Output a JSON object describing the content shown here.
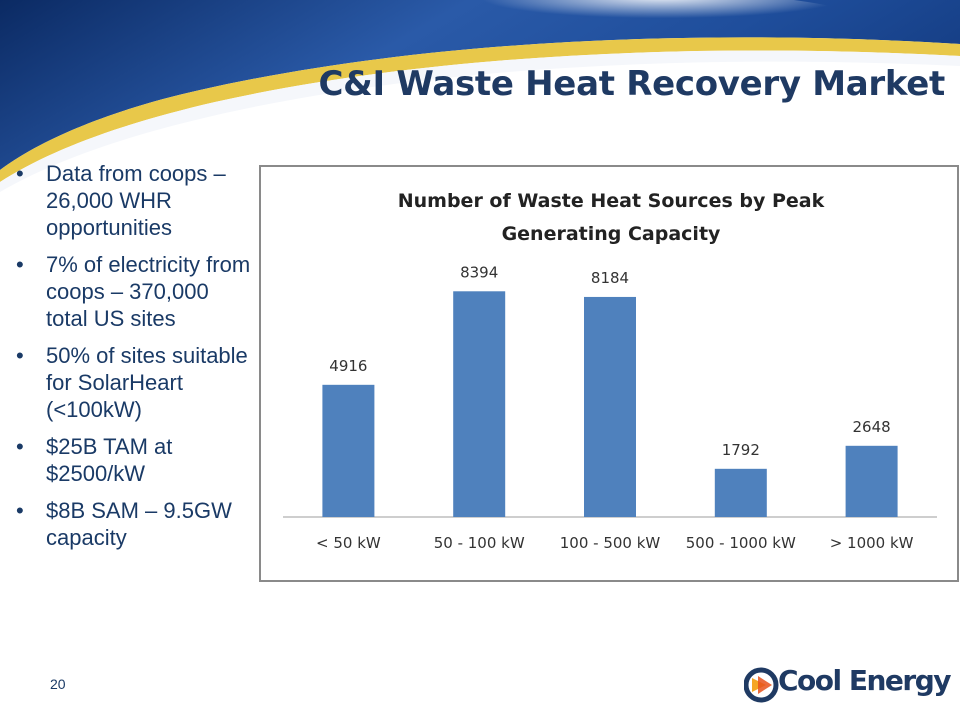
{
  "slide": {
    "title": "C&I Waste Heat Recovery Market",
    "page_number": "20",
    "logo_text": "Cool Energy"
  },
  "bullets": [
    "Data from coops – 26,000 WHR opportunities",
    "7% of electricity from coops – 370,000 total US sites",
    "50% of sites suitable for SolarHeart (<100kW)",
    "$25B TAM at $2500/kW",
    "$8B SAM – 9.5GW capacity"
  ],
  "colors": {
    "bar": "#4f81bd",
    "title": "#1f3a63",
    "bullet_text": "#1a3a66"
  },
  "chart_data": {
    "type": "bar",
    "title_lines": [
      "Number of Waste Heat Sources by Peak",
      "Generating Capacity"
    ],
    "categories": [
      "< 50 kW",
      "50 - 100 kW",
      "100 - 500 kW",
      "500 - 1000 kW",
      "> 1000 kW"
    ],
    "values": [
      4916,
      8394,
      8184,
      1792,
      2648
    ],
    "data_labels": true,
    "grid": false,
    "legend": "none",
    "ylim": [
      0,
      9000
    ]
  }
}
